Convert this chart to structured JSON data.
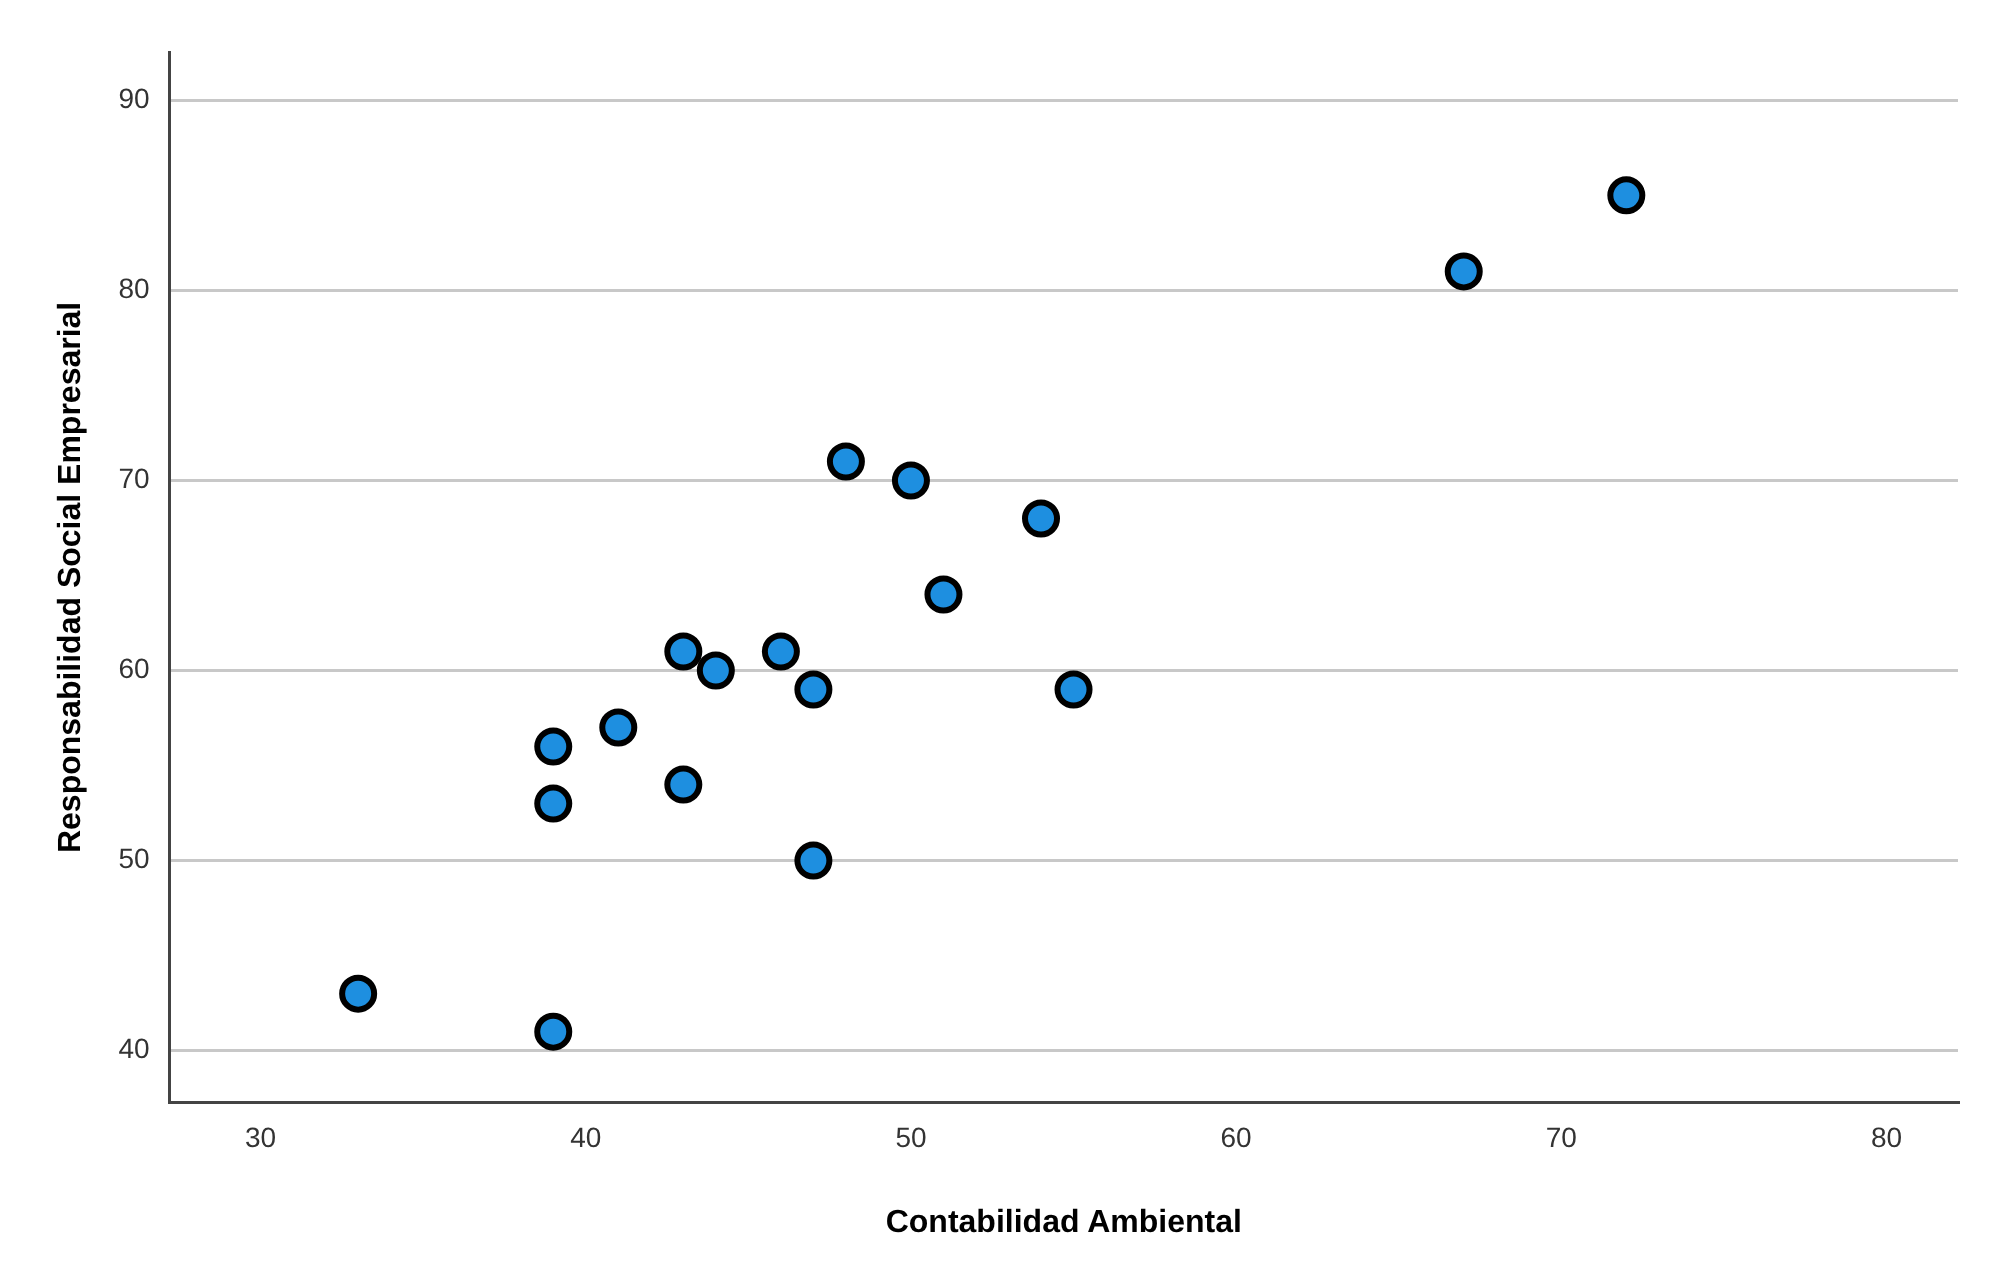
{
  "chart_data": {
    "type": "scatter",
    "xlabel": "Contabilidad Ambiental",
    "ylabel": "Responsabilidad Social Empresarial",
    "x": [
      33,
      39,
      39,
      39,
      41,
      43,
      43,
      44,
      46,
      47,
      47,
      48,
      50,
      51,
      54,
      55,
      67,
      72
    ],
    "series": [
      {
        "color": "#1e8fe0",
        "values": [
          43,
          41,
          53,
          56,
          57,
          54,
          61,
          60,
          61,
          59,
          50,
          71,
          70,
          64,
          68,
          59,
          81,
          85
        ]
      }
    ],
    "xlim": [
      27.2,
      82.2
    ],
    "ylim": [
      37.3,
      92.5
    ],
    "xticks": [
      30,
      40,
      50,
      60,
      70,
      80
    ],
    "yticks": [
      40,
      50,
      60,
      70,
      80,
      90
    ],
    "grid": "y",
    "marker": "circle",
    "legend": false
  }
}
